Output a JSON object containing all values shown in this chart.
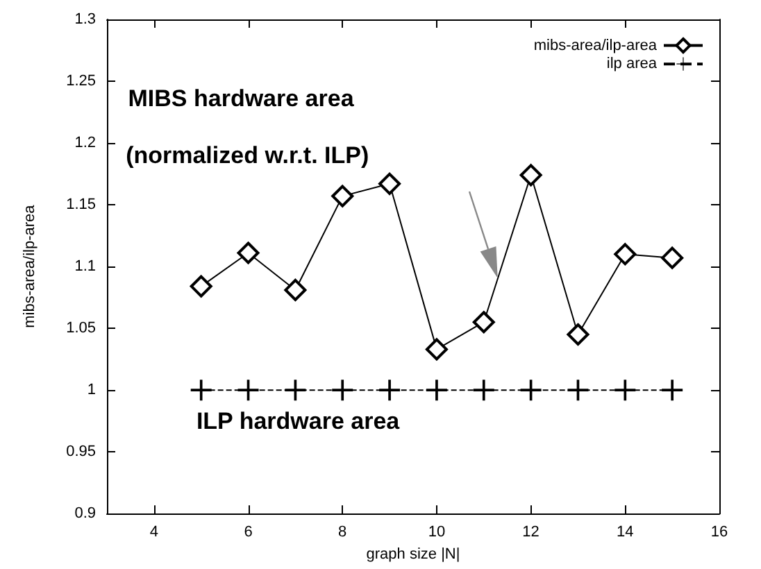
{
  "chart_data": {
    "type": "line",
    "xlabel": "graph size |N|",
    "ylabel": "mibs-area/ilp-area",
    "x": [
      5,
      6,
      7,
      8,
      9,
      10,
      11,
      12,
      13,
      14,
      15
    ],
    "series": [
      {
        "name": "mibs-area/ilp-area",
        "color": "#000000",
        "marker": "diamond",
        "line_style": "solid",
        "values": [
          1.084,
          1.111,
          1.081,
          1.157,
          1.167,
          1.033,
          1.055,
          1.174,
          1.045,
          1.11,
          1.107
        ]
      },
      {
        "name": "ilp area",
        "color": "#000000",
        "marker": "cross",
        "line_style": "dashed",
        "values": [
          1,
          1,
          1,
          1,
          1,
          1,
          1,
          1,
          1,
          1,
          1
        ]
      }
    ],
    "xlim": [
      3,
      16
    ],
    "xticks": [
      4,
      6,
      8,
      10,
      12,
      14,
      16
    ],
    "ylim": [
      0.9,
      1.3
    ],
    "yticks": [
      0.9,
      0.95,
      1,
      1.05,
      1.1,
      1.15,
      1.2,
      1.25,
      1.3
    ],
    "grid": false,
    "legend": "top right",
    "annotations": [
      "MIBS hardware area",
      "(normalized w.r.t. ILP)",
      "ILP hardware area"
    ]
  }
}
